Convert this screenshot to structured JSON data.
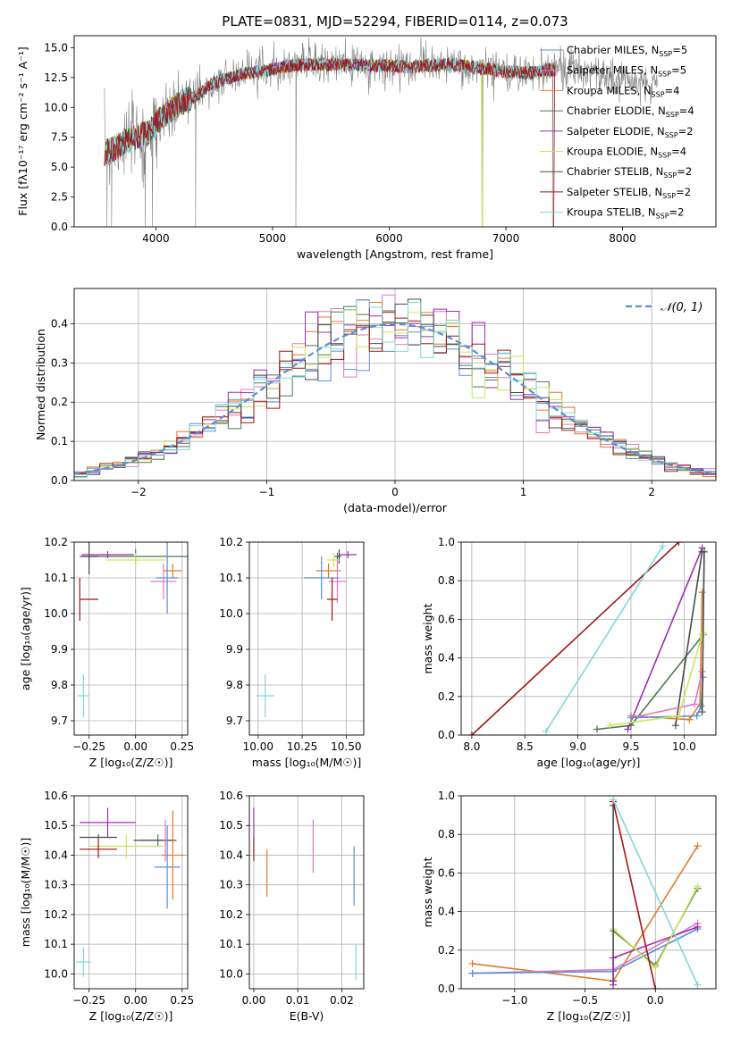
{
  "colors": {
    "ch_miles": "#5b8fd8",
    "sa_miles": "#e377c2",
    "kr_miles": "#e07b2a",
    "ch_elodie": "#4a7a52",
    "sa_elodie": "#9b2fae",
    "kr_elodie": "#c9e85a",
    "ch_stelib": "#4a4a4a",
    "sa_stelib": "#a31414",
    "kr_stelib": "#7fd8d8",
    "gaussian": "#5b8fd8",
    "grid": "#b0b0b0"
  },
  "chart_data": [
    {
      "id": "spectrum",
      "type": "line",
      "title": "PLATE=0831, MJD=52294, FIBERID=0114, z=0.073",
      "xlabel": "wavelength [Angstrom, rest frame]",
      "ylabel": "Flux [fλ10⁻¹⁷ erg cm⁻² s⁻¹ A⁻¹]",
      "xlim": [
        3300,
        8800
      ],
      "ylim": [
        0,
        16
      ],
      "xticks": [
        4000,
        5000,
        6000,
        7000,
        8000
      ],
      "yticks": [
        "0.0",
        "2.5",
        "5.0",
        "7.5",
        "10.0",
        "12.5",
        "15.0"
      ],
      "grid": false,
      "legend_position": "right",
      "legend": [
        {
          "label": "Chabrier MILES, N",
          "sub": "SSP",
          "suffix": "=5",
          "color": "ch_miles"
        },
        {
          "label": "Salpeter MILES, N",
          "sub": "SSP",
          "suffix": "=5",
          "color": "sa_miles"
        },
        {
          "label": "Kroupa MILES, N",
          "sub": "SSP",
          "suffix": "=4",
          "color": "kr_miles"
        },
        {
          "label": "Chabrier ELODIE, N",
          "sub": "SSP",
          "suffix": "=4",
          "color": "ch_elodie"
        },
        {
          "label": "Salpeter ELODIE, N",
          "sub": "SSP",
          "suffix": "=2",
          "color": "sa_elodie"
        },
        {
          "label": "Kroupa ELODIE, N",
          "sub": "SSP",
          "suffix": "=4",
          "color": "kr_elodie"
        },
        {
          "label": "Chabrier STELIB, N",
          "sub": "SSP",
          "suffix": "=2",
          "color": "ch_stelib"
        },
        {
          "label": "Salpeter STELIB, N",
          "sub": "SSP",
          "suffix": "=2",
          "color": "sa_stelib"
        },
        {
          "label": "Kroupa STELIB, N",
          "sub": "SSP",
          "suffix": "=2",
          "color": "kr_stelib"
        }
      ],
      "continuum": [
        [
          3560,
          6.2
        ],
        [
          3650,
          6.6
        ],
        [
          3750,
          7.2
        ],
        [
          3850,
          7.6
        ],
        [
          3950,
          8.0
        ],
        [
          4050,
          9.2
        ],
        [
          4200,
          10.3
        ],
        [
          4350,
          11.0
        ],
        [
          4500,
          12.1
        ],
        [
          4700,
          12.7
        ],
        [
          4900,
          13.0
        ],
        [
          5100,
          13.4
        ],
        [
          5300,
          13.6
        ],
        [
          5600,
          13.6
        ],
        [
          5900,
          13.5
        ],
        [
          6200,
          13.4
        ],
        [
          6500,
          13.6
        ],
        [
          6800,
          13.3
        ],
        [
          7000,
          13.0
        ],
        [
          7200,
          12.9
        ],
        [
          7500,
          13.3
        ],
        [
          7800,
          12.7
        ],
        [
          8100,
          12.1
        ],
        [
          8300,
          11.8
        ]
      ],
      "dips": [
        [
          3580,
          0
        ],
        [
          3620,
          0
        ],
        [
          3910,
          0
        ],
        [
          3970,
          0
        ],
        [
          4340,
          0
        ],
        [
          5200,
          0
        ],
        [
          6800,
          0
        ],
        [
          7400,
          0
        ]
      ]
    },
    {
      "id": "residuals",
      "type": "histogram",
      "xlabel": "(data-model)/error",
      "ylabel": "Normed distribution",
      "xlim": [
        -2.5,
        2.5
      ],
      "ylim": [
        0,
        0.49
      ],
      "xticks": [
        "−2",
        "−1",
        "0",
        "1",
        "2"
      ],
      "xtick_values": [
        -2,
        -1,
        0,
        1,
        2
      ],
      "yticks": [
        "0.0",
        "0.1",
        "0.2",
        "0.3",
        "0.4"
      ],
      "ytick_values": [
        0,
        0.1,
        0.2,
        0.3,
        0.4
      ],
      "grid": true,
      "legend_position": "upper right",
      "legend_label": "𝒩(0, 1)",
      "bin_width": 0.1
    },
    {
      "id": "age_vs_Z",
      "type": "errorbar",
      "xlabel": "Z [log₁₀(Z/Z☉)]",
      "ylabel": "age  [log₁₀(age/yr)]",
      "xlim": [
        -0.33,
        0.28
      ],
      "ylim": [
        9.66,
        10.2
      ],
      "xticks": [
        "−0.25",
        "0.00",
        "0.25"
      ],
      "xtick_values": [
        -0.25,
        0,
        0.25
      ],
      "yticks": [
        "9.7",
        "9.8",
        "9.9",
        "10.0",
        "10.1",
        "10.2"
      ],
      "ytick_values": [
        9.7,
        9.8,
        9.9,
        10.0,
        10.1,
        10.2
      ],
      "grid": true,
      "points": [
        {
          "c": "ch_elodie",
          "x": 0.0,
          "y": 10.16,
          "xe": 0.29,
          "ye": 0.02
        },
        {
          "c": "ch_stelib",
          "x": -0.25,
          "y": 10.16,
          "xe": 0.05,
          "ye": 0.05
        },
        {
          "c": "sa_elodie",
          "x": -0.15,
          "y": 10.165,
          "xe": 0.14,
          "ye": 0.01
        },
        {
          "c": "kr_elodie",
          "x": 0.0,
          "y": 10.15,
          "xe": 0.16,
          "ye": 0.02
        },
        {
          "c": "kr_miles",
          "x": 0.2,
          "y": 10.12,
          "xe": 0.05,
          "ye": 0.02
        },
        {
          "c": "sa_miles",
          "x": 0.15,
          "y": 10.09,
          "xe": 0.07,
          "ye": 0.05
        },
        {
          "c": "ch_miles",
          "x": 0.17,
          "y": 10.1,
          "xe": 0.06,
          "ye": 0.1
        },
        {
          "c": "sa_stelib",
          "x": -0.3,
          "y": 10.04,
          "xe": 0.0,
          "ye": 0.06
        },
        {
          "c": "sa_stelib",
          "x": -0.25,
          "y": 10.04,
          "xe": 0.05,
          "ye": 0.0
        },
        {
          "c": "kr_stelib",
          "x": -0.28,
          "y": 9.77,
          "xe": 0.03,
          "ye": 0.06
        }
      ]
    },
    {
      "id": "age_vs_mass",
      "type": "errorbar",
      "xlabel": "mass [log₁₀(M/M☉)]",
      "ylabel": "",
      "xlim": [
        9.95,
        10.6
      ],
      "ylim": [
        9.66,
        10.2
      ],
      "xticks": [
        "10.00",
        "10.25",
        "10.50"
      ],
      "xtick_values": [
        10.0,
        10.25,
        10.5
      ],
      "yticks": [
        "9.7",
        "9.8",
        "9.9",
        "10.0",
        "10.1",
        "10.2"
      ],
      "ytick_values": [
        9.7,
        9.8,
        9.9,
        10.0,
        10.1,
        10.2
      ],
      "grid": true,
      "points": [
        {
          "c": "ch_elodie",
          "x": 10.45,
          "y": 10.16,
          "xe": 0.02,
          "ye": 0.01
        },
        {
          "c": "ch_stelib",
          "x": 10.46,
          "y": 10.16,
          "xe": 0.01,
          "ye": 0.02
        },
        {
          "c": "sa_elodie",
          "x": 10.51,
          "y": 10.165,
          "xe": 0.05,
          "ye": 0.01
        },
        {
          "c": "kr_elodie",
          "x": 10.43,
          "y": 10.15,
          "xe": 0.04,
          "ye": 0.02
        },
        {
          "c": "kr_miles",
          "x": 10.4,
          "y": 10.12,
          "xe": 0.07,
          "ye": 0.02
        },
        {
          "c": "sa_miles",
          "x": 10.45,
          "y": 10.09,
          "xe": 0.05,
          "ye": 0.06
        },
        {
          "c": "ch_miles",
          "x": 10.36,
          "y": 10.1,
          "xe": 0.1,
          "ye": 0.06
        },
        {
          "c": "sa_stelib",
          "x": 10.42,
          "y": 10.04,
          "xe": 0.03,
          "ye": 0.06
        },
        {
          "c": "kr_stelib",
          "x": 10.04,
          "y": 9.77,
          "xe": 0.05,
          "ye": 0.06
        }
      ]
    },
    {
      "id": "mass_vs_Z",
      "type": "errorbar",
      "xlabel": "Z [log₁₀(Z/Z☉)]",
      "ylabel": "mass [log₁₀(M/M☉)]",
      "xlim": [
        -0.33,
        0.28
      ],
      "ylim": [
        9.95,
        10.6
      ],
      "xticks": [
        "−0.25",
        "0.00",
        "0.25"
      ],
      "xtick_values": [
        -0.25,
        0,
        0.25
      ],
      "yticks": [
        "10.0",
        "10.1",
        "10.2",
        "10.3",
        "10.4",
        "10.5",
        "10.6"
      ],
      "ytick_values": [
        10.0,
        10.1,
        10.2,
        10.3,
        10.4,
        10.5,
        10.6
      ],
      "grid": true,
      "points": [
        {
          "c": "sa_elodie",
          "x": -0.15,
          "y": 10.51,
          "xe": 0.15,
          "ye": 0.05
        },
        {
          "c": "ch_elodie",
          "x": 0.12,
          "y": 10.45,
          "xe": 0.1,
          "ye": 0.02
        },
        {
          "c": "ch_stelib",
          "x": -0.2,
          "y": 10.46,
          "xe": 0.1,
          "ye": 0.01
        },
        {
          "c": "ch_stelib",
          "x": 0.1,
          "y": 10.45,
          "xe": 0.11,
          "ye": 0.0
        },
        {
          "c": "kr_elodie",
          "x": -0.05,
          "y": 10.43,
          "xe": 0.2,
          "ye": 0.04
        },
        {
          "c": "sa_stelib",
          "x": -0.2,
          "y": 10.42,
          "xe": 0.1,
          "ye": 0.03
        },
        {
          "c": "kr_miles",
          "x": 0.2,
          "y": 10.4,
          "xe": 0.06,
          "ye": 0.15
        },
        {
          "c": "sa_miles",
          "x": 0.16,
          "y": 10.45,
          "xe": 0.0,
          "ye": 0.07
        },
        {
          "c": "ch_miles",
          "x": 0.17,
          "y": 10.36,
          "xe": 0.07,
          "ye": 0.14
        },
        {
          "c": "kr_stelib",
          "x": -0.28,
          "y": 10.04,
          "xe": 0.04,
          "ye": 0.05
        }
      ]
    },
    {
      "id": "mass_vs_ebv",
      "type": "errorbar",
      "xlabel": "E(B-V)",
      "ylabel": "",
      "xlim": [
        -0.001,
        0.025
      ],
      "ylim": [
        9.95,
        10.6
      ],
      "xticks": [
        "0.00",
        "0.01",
        "0.02"
      ],
      "xtick_values": [
        0,
        0.01,
        0.02
      ],
      "yticks": [
        "10.0",
        "10.1",
        "10.2",
        "10.3",
        "10.4",
        "10.5",
        "10.6"
      ],
      "ytick_values": [
        10.0,
        10.1,
        10.2,
        10.3,
        10.4,
        10.5,
        10.6
      ],
      "grid": true,
      "points": [
        {
          "c": "sa_elodie",
          "x": 0.0,
          "y": 10.51,
          "xe": 0,
          "ye": 0.05
        },
        {
          "c": "sa_stelib",
          "x": 0.0,
          "y": 10.42,
          "xe": 0,
          "ye": 0.04
        },
        {
          "c": "kr_miles",
          "x": 0.003,
          "y": 10.34,
          "xe": 0,
          "ye": 0.08
        },
        {
          "c": "sa_miles",
          "x": 0.0135,
          "y": 10.43,
          "xe": 0,
          "ye": 0.09
        },
        {
          "c": "ch_miles",
          "x": 0.0228,
          "y": 10.33,
          "xe": 0,
          "ye": 0.1
        },
        {
          "c": "kr_stelib",
          "x": 0.0232,
          "y": 10.04,
          "xe": 0,
          "ye": 0.06
        }
      ]
    },
    {
      "id": "weight_vs_age",
      "type": "line",
      "xlabel": "age  [log₁₀(age/yr)]",
      "ylabel": "mass weight",
      "xlim": [
        7.9,
        10.3
      ],
      "ylim": [
        0,
        1
      ],
      "xticks": [
        "8.0",
        "8.5",
        "9.0",
        "9.5",
        "10.0"
      ],
      "xtick_values": [
        8.0,
        8.5,
        9.0,
        9.5,
        10.0
      ],
      "yticks": [
        "0.0",
        "0.2",
        "0.4",
        "0.6",
        "0.8",
        "1.0"
      ],
      "ytick_values": [
        0,
        0.2,
        0.4,
        0.6,
        0.8,
        1.0
      ],
      "grid": true,
      "series": [
        {
          "c": "sa_stelib",
          "x": [
            8.0,
            9.95
          ],
          "y": [
            0.0,
            1.0
          ]
        },
        {
          "c": "kr_stelib",
          "x": [
            8.7,
            9.8
          ],
          "y": [
            0.02,
            0.98
          ]
        },
        {
          "c": "ch_elodie",
          "x": [
            9.18,
            9.5,
            10.18
          ],
          "y": [
            0.03,
            0.05,
            0.52
          ]
        },
        {
          "c": "sa_elodie",
          "x": [
            9.47,
            10.17
          ],
          "y": [
            0.03,
            0.97
          ]
        },
        {
          "c": "ch_stelib",
          "x": [
            9.92,
            10.17
          ],
          "y": [
            0.05,
            0.95
          ]
        },
        {
          "c": "kr_miles",
          "x": [
            9.5,
            10.05,
            10.15,
            10.17
          ],
          "y": [
            0.1,
            0.08,
            0.16,
            0.74
          ]
        },
        {
          "c": "sa_miles",
          "x": [
            9.5,
            10.1,
            10.17
          ],
          "y": [
            0.09,
            0.16,
            0.33
          ]
        },
        {
          "c": "ch_miles",
          "x": [
            9.5,
            10.12,
            10.16,
            10.18
          ],
          "y": [
            0.09,
            0.1,
            0.15,
            0.3
          ]
        },
        {
          "c": "kr_elodie",
          "x": [
            9.3,
            9.95,
            10.17,
            10.18
          ],
          "y": [
            0.05,
            0.1,
            0.52,
            0.53
          ]
        },
        {
          "c": "ch_stelib",
          "x": [
            10.17,
            10.19
          ],
          "y": [
            0.12,
            0.95
          ]
        }
      ]
    },
    {
      "id": "weight_vs_Z",
      "type": "line",
      "xlabel": "Z [log₁₀(Z/Z☉)]",
      "ylabel": "mass weight",
      "xlim": [
        -1.38,
        0.43
      ],
      "ylim": [
        0,
        1
      ],
      "xticks": [
        "−1.0",
        "−0.5",
        "0.0"
      ],
      "xtick_values": [
        -1.0,
        -0.5,
        0.0
      ],
      "yticks": [
        "0.0",
        "0.2",
        "0.4",
        "0.6",
        "0.8",
        "1.0"
      ],
      "ytick_values": [
        0,
        0.2,
        0.4,
        0.6,
        0.8,
        1.0
      ],
      "grid": true,
      "series": [
        {
          "c": "kr_miles",
          "x": [
            -1.3,
            -0.3,
            0.3
          ],
          "y": [
            0.13,
            0.04,
            0.74
          ]
        },
        {
          "c": "sa_miles",
          "x": [
            -1.3,
            -0.3,
            0.3
          ],
          "y": [
            0.08,
            0.1,
            0.34
          ]
        },
        {
          "c": "ch_miles",
          "x": [
            -1.3,
            -0.3,
            0.3
          ],
          "y": [
            0.08,
            0.09,
            0.31
          ]
        },
        {
          "c": "sa_elodie",
          "x": [
            -0.3,
            0.3
          ],
          "y": [
            0.16,
            0.32
          ]
        },
        {
          "c": "ch_elodie",
          "x": [
            -0.3,
            0.0,
            0.3
          ],
          "y": [
            0.3,
            0.12,
            0.52
          ]
        },
        {
          "c": "kr_elodie",
          "x": [
            -0.3,
            0.0,
            0.3
          ],
          "y": [
            0.31,
            0.11,
            0.53
          ]
        },
        {
          "c": "ch_stelib",
          "x": [
            -0.3,
            -0.3
          ],
          "y": [
            0.04,
            0.95
          ]
        },
        {
          "c": "sa_stelib",
          "x": [
            -0.3,
            0.0
          ],
          "y": [
            0.97,
            0.0
          ]
        },
        {
          "c": "kr_stelib",
          "x": [
            -0.3,
            0.3
          ],
          "y": [
            0.98,
            0.02
          ]
        },
        {
          "c": "sa_elodie",
          "x": [
            -0.3,
            -0.3
          ],
          "y": [
            0.02,
            0.16
          ]
        }
      ]
    }
  ]
}
